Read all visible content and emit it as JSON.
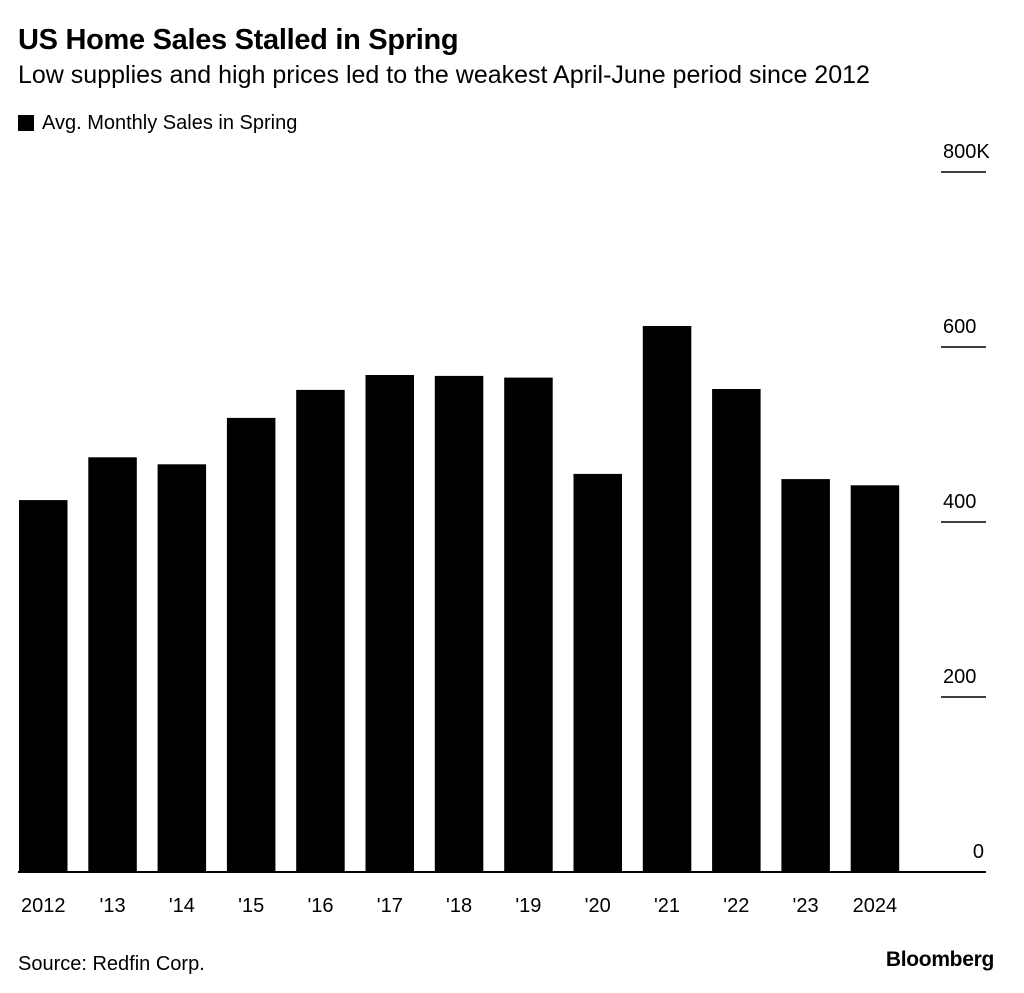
{
  "header": {
    "title": "US Home Sales Stalled in Spring",
    "subtitle": "Low supplies and high prices led to the weakest April-June period since 2012"
  },
  "legend": {
    "label": "Avg. Monthly Sales in Spring",
    "color": "#000000"
  },
  "footer": {
    "source": "Source: Redfin Corp.",
    "brand": "Bloomberg"
  },
  "chart_data": {
    "type": "bar",
    "title": "US Home Sales Stalled in Spring",
    "subtitle": "Low supplies and high prices led to the weakest April-June period since 2012",
    "categories": [
      "2012",
      "'13",
      "'14",
      "'15",
      "'16",
      "'17",
      "'18",
      "'19",
      "'20",
      "'21",
      "'22",
      "'23",
      "'24"
    ],
    "category_labels": [
      "2012",
      "'13",
      "'14",
      "'15",
      "'16",
      "'17",
      "'18",
      "'19",
      "'20",
      "'21",
      "'22",
      "'23",
      "2024"
    ],
    "series": [
      {
        "name": "Avg. Monthly Sales in Spring",
        "color": "#000000",
        "values": [
          425,
          474,
          466,
          519,
          551,
          568,
          567,
          565,
          455,
          624,
          552,
          449,
          442
        ]
      }
    ],
    "xlabel": "",
    "ylabel": "",
    "ylim": [
      0,
      800
    ],
    "yticks": [
      0,
      200,
      400,
      600,
      800
    ],
    "ytick_labels": [
      "0",
      "200",
      "400",
      "600",
      "800K"
    ],
    "yaxis_side": "right",
    "grid": false,
    "legend_position": "top-left"
  }
}
